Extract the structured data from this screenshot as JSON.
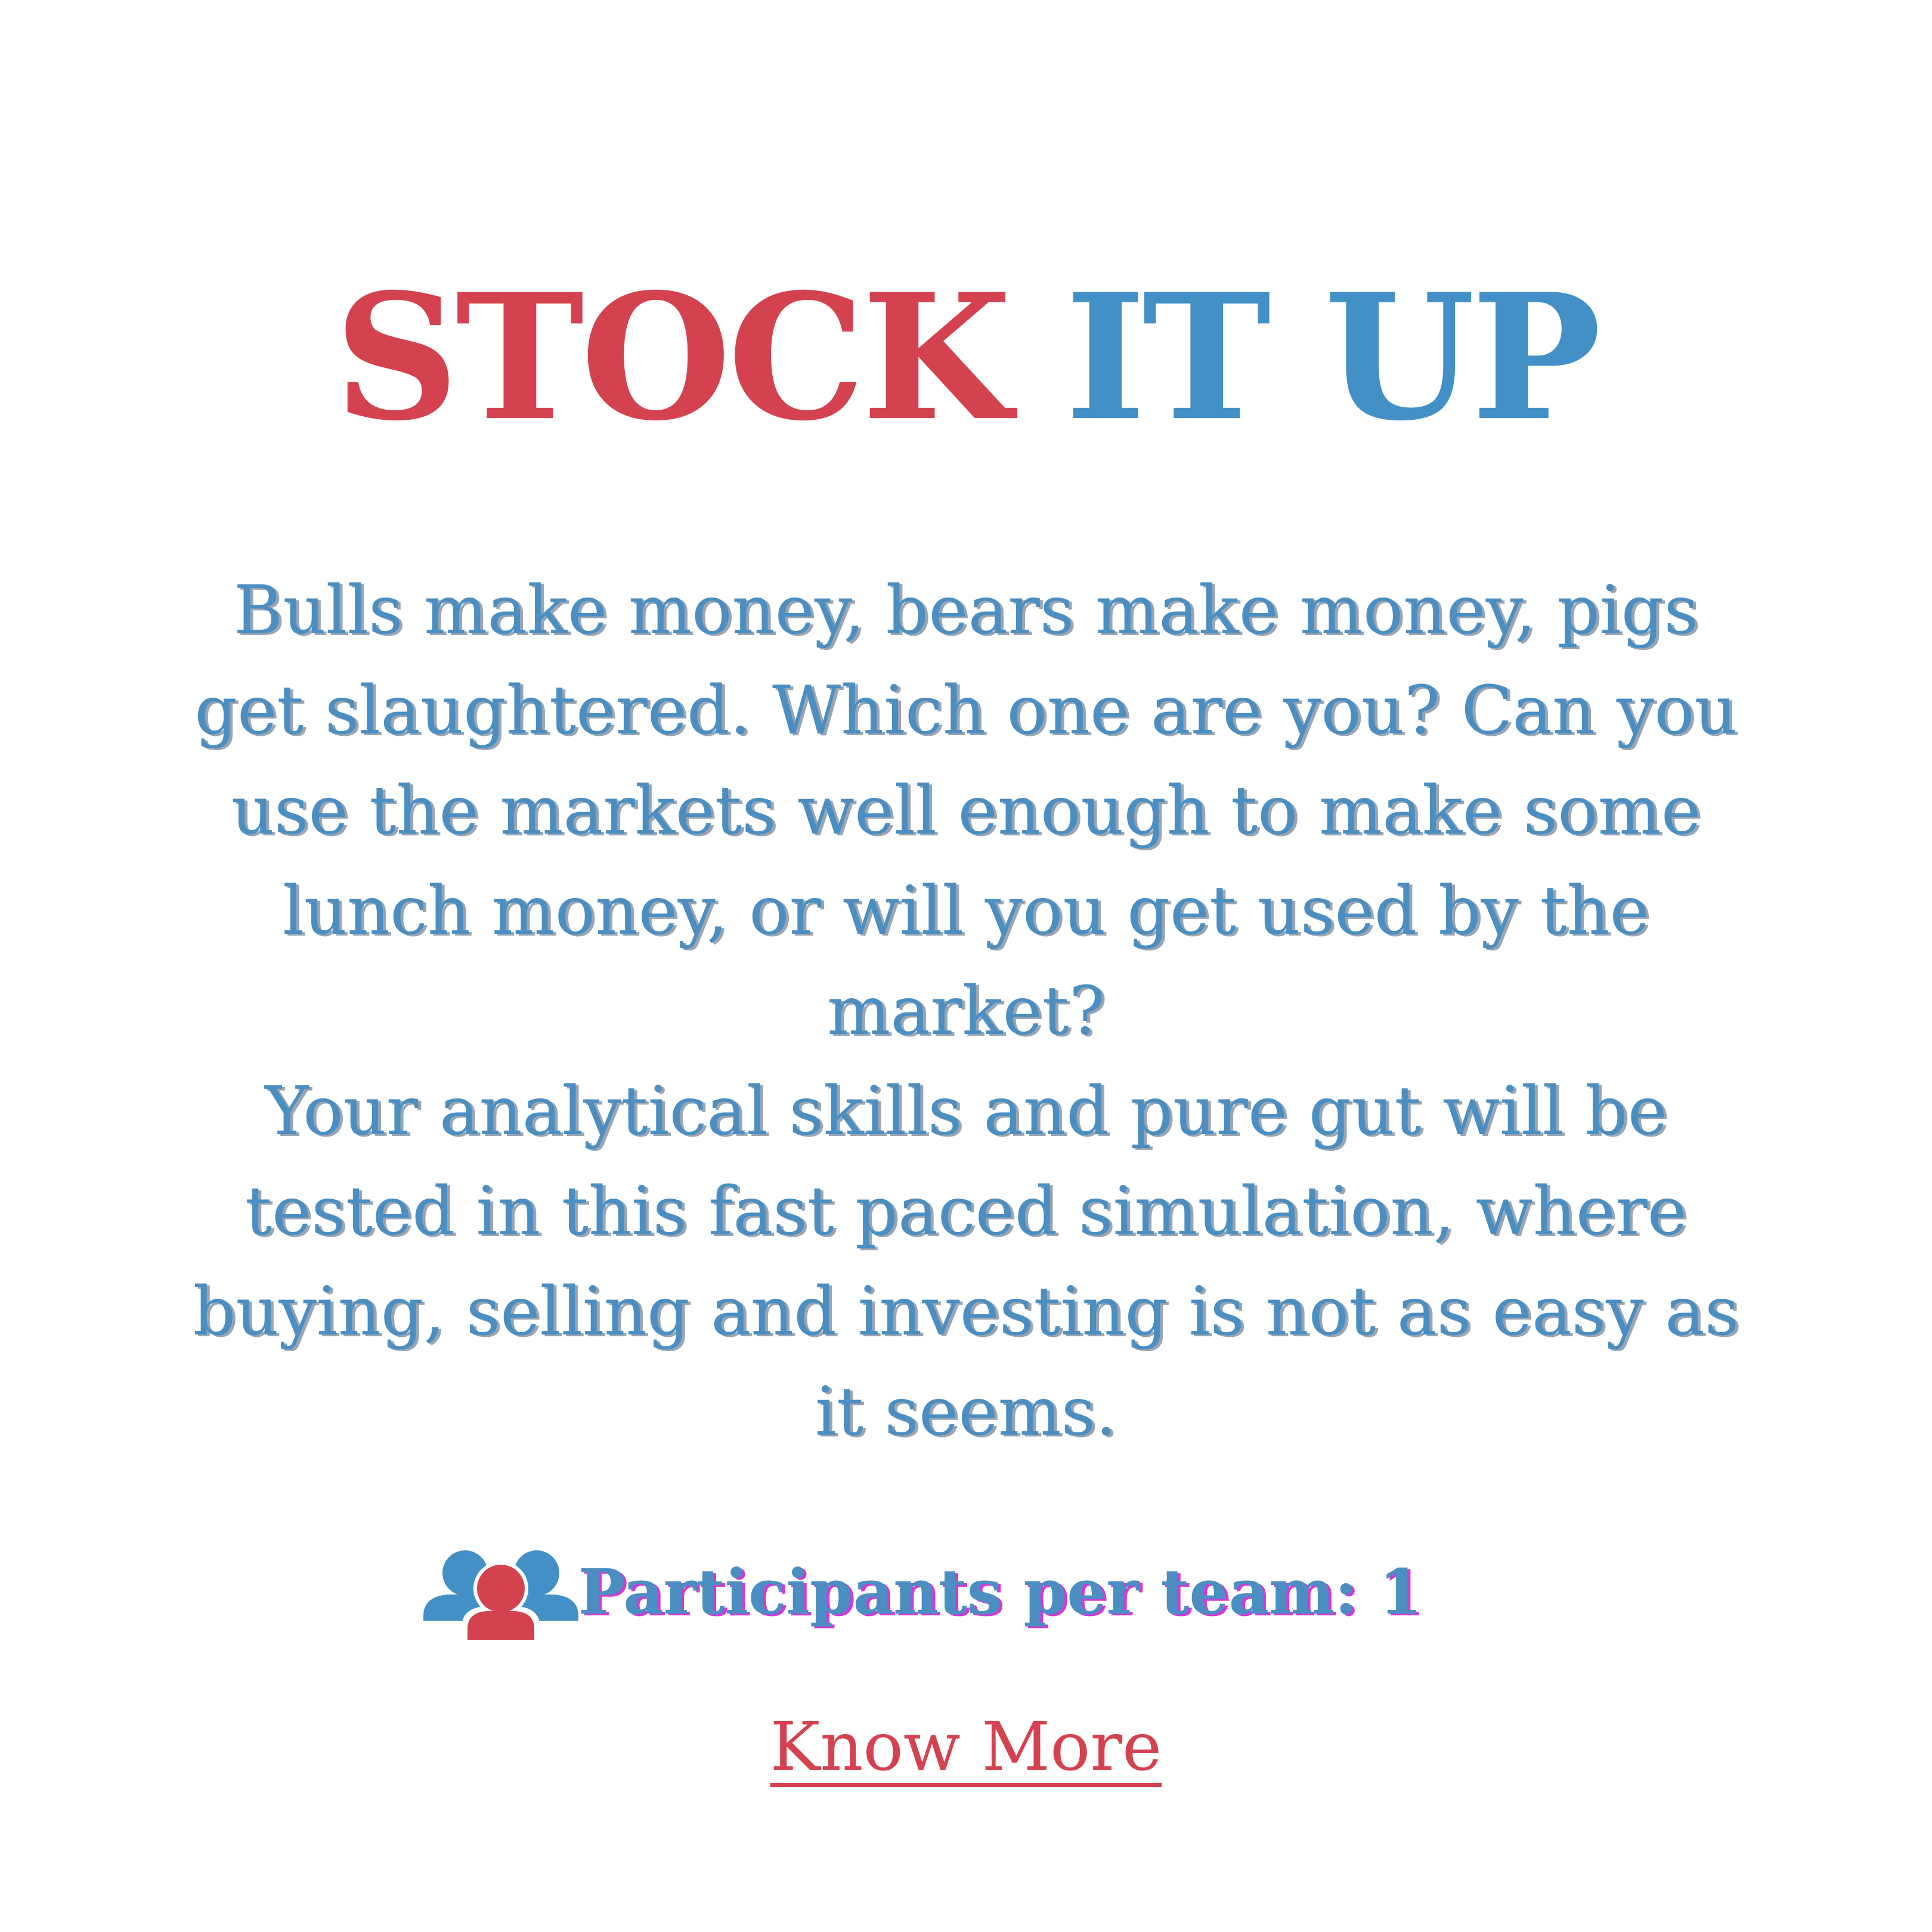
{
  "title": {
    "part1": "STOCK",
    "part2": "IT UP"
  },
  "description": {
    "paragraph1": "Bulls make money, bears make money, pigs get slaughtered. Which one are you? Can you use the markets well enough to make some lunch money, or will you get used by the market?",
    "paragraph2": "Your analytical skills and pure gut will be tested in this fast paced simulation, where buying, selling and investing is not as easy as it seems."
  },
  "participants": {
    "icon": "group-icon",
    "label": "Participants per team: 1"
  },
  "cta": {
    "label": "Know More"
  },
  "colors": {
    "red": "#d4424f",
    "blue": "#4290c6",
    "text_blue": "#4a8ec2",
    "background": "#ffffff"
  }
}
